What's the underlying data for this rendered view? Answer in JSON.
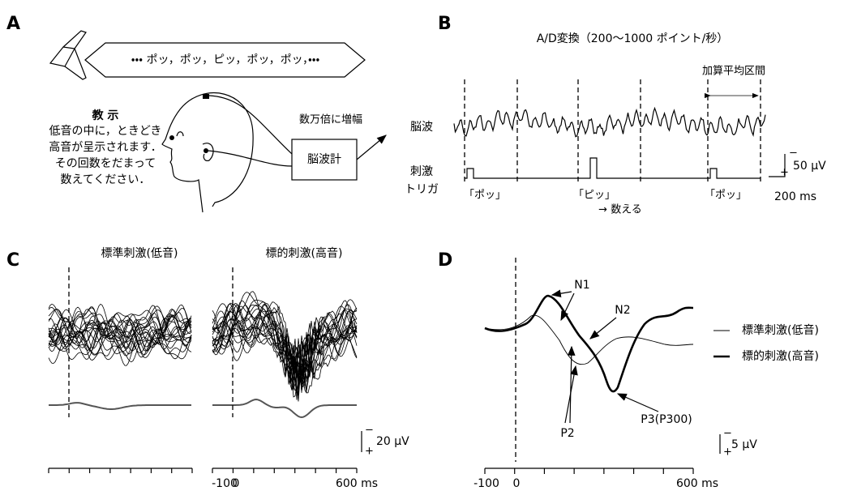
{
  "panel_a": {
    "label": "A",
    "sound_sequence": "・・・ ポッ，ポッ，ピッ，ポッ，ポッ，・・・",
    "instruction_title": "教 示",
    "instruction_lines": [
      "低音の中に，ときどき",
      "高音が呈示されます．",
      "その回数をだまって",
      "数えてください．"
    ],
    "amplify": "数万倍に増幅",
    "device": "脳波計"
  },
  "panel_b": {
    "label": "B",
    "title": "A/D変換（200〜1000 ポイント/秒）",
    "averaging_window": "加算平均区間",
    "eeg_label": "脳波",
    "trigger_label": [
      "刺激",
      "トリガ"
    ],
    "stimuli": [
      "「ポッ」",
      "「ピッ」",
      "「ポッ」"
    ],
    "count_note": "→ 数える",
    "scale_amplitude": "50 μV",
    "scale_time": "200 ms",
    "scale_minus": "−",
    "scale_plus": "+"
  },
  "panel_c": {
    "label": "C",
    "titles": [
      "標準刺激(低音)",
      "標的刺激(高音)"
    ],
    "axis_labels": [
      "-100",
      "0",
      "600 ms"
    ],
    "scale_amplitude": "20 μV",
    "scale_minus": "−",
    "scale_plus": "+"
  },
  "panel_d": {
    "label": "D",
    "components": [
      "N1",
      "N2",
      "P2",
      "P3(P300)"
    ],
    "legend": [
      "標準刺激(低音)",
      "標的刺激(高音)"
    ],
    "axis_labels": [
      "-100",
      "0",
      "600 ms"
    ],
    "scale_amplitude": "5 μV",
    "scale_minus": "−",
    "scale_plus": "+"
  }
}
